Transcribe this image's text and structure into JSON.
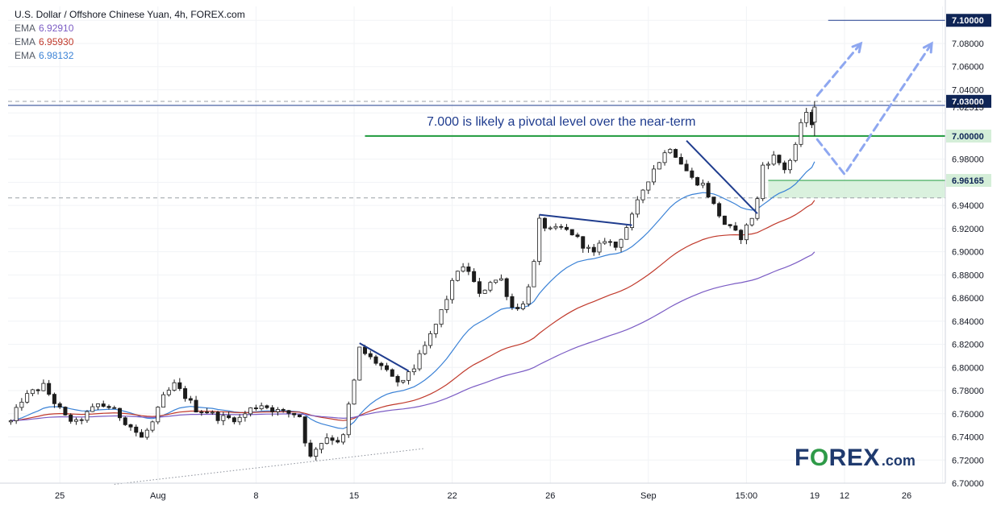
{
  "header": {
    "title": "U.S. Dollar / Offshore Chinese Yuan, 4h, FOREX.com",
    "indicators": [
      {
        "label": "EMA",
        "value": "6.92910",
        "color": "#7b5cc4"
      },
      {
        "label": "EMA",
        "value": "6.95930",
        "color": "#c0392b"
      },
      {
        "label": "EMA",
        "value": "6.98132",
        "color": "#3b82d6"
      }
    ]
  },
  "logo": {
    "brand_pre": "F",
    "brand_o": "O",
    "brand_post": "REX",
    "tld": ".com"
  },
  "colors": {
    "candle_up": "#ffffff",
    "candle_down": "#1c1c1c",
    "wick": "#1c1c1c",
    "ema_fast": "#3b82d6",
    "ema_mid": "#c0392b",
    "ema_slow": "#7b5cc4",
    "pivot_line": "#1e9a3c",
    "zone_fill": "#d4eed8",
    "trendline": "#1f3c8e",
    "projection": "#8ea7f0",
    "badge_dark": "#0f2556",
    "price_text": "#131722"
  },
  "chart_data": {
    "type": "candlestick",
    "title": "U.S. Dollar / Offshore Chinese Yuan, 4h, FOREX.com",
    "ylim": [
      6.7,
      7.112
    ],
    "y_ticks": [
      6.7,
      6.72,
      6.74,
      6.76,
      6.78,
      6.8,
      6.82,
      6.84,
      6.86,
      6.88,
      6.9,
      6.92,
      6.94,
      6.96,
      6.98,
      7.0,
      7.02,
      7.04,
      7.06,
      7.08,
      7.1
    ],
    "y_tick_labels": [
      "6.70000",
      "6.72000",
      "6.74000",
      "6.76000",
      "6.78000",
      "6.80000",
      "6.82000",
      "6.84000",
      "6.86000",
      "6.88000",
      "6.90000",
      "6.92000",
      "6.94000",
      "6.96000",
      "6.98000",
      "7.00000",
      "7.02000",
      "7.04000",
      "7.06000",
      "7.08000",
      "7.10000"
    ],
    "x_range": [
      0,
      172
    ],
    "x_ticks": [
      {
        "i": 9,
        "label": "25"
      },
      {
        "i": 27,
        "label": "Aug"
      },
      {
        "i": 45,
        "label": "8"
      },
      {
        "i": 63,
        "label": "15"
      },
      {
        "i": 81,
        "label": "22"
      },
      {
        "i": 99,
        "label": "26"
      },
      {
        "i": 117,
        "label": "Sep"
      },
      {
        "i": 135,
        "label": "15:00"
      },
      {
        "i": 153,
        "label": "12"
      },
      {
        "i": 171,
        "label": "19"
      },
      {
        "i": 189,
        "label": "26"
      }
    ],
    "annotation": "7.000 is likely a pivotal level over the near-term",
    "price_labels": [
      {
        "value": 7.1,
        "text": "7.10000",
        "style": "dark"
      },
      {
        "value": 7.03,
        "text": "7.03000",
        "style": "dark"
      },
      {
        "value": 7.02515,
        "text": "7.02515",
        "style": "plain"
      },
      {
        "value": 7.0,
        "text": "7.00000",
        "style": "green"
      },
      {
        "value": 6.96165,
        "text": "6.96165",
        "style": "green"
      }
    ],
    "levels": [
      {
        "name": "pivot",
        "value": 7.0,
        "from_i": 65,
        "to_i": 172
      },
      {
        "name": "resistance",
        "value": 7.0265,
        "from_i": 0,
        "to_i": 172
      },
      {
        "name": "target",
        "value": 7.1,
        "from_i": 150,
        "to_i": 172
      }
    ],
    "zone": {
      "from_i": 139,
      "to_i": 172,
      "low": 6.9465,
      "high": 6.96165
    },
    "dashed_levels": [
      6.9465,
      7.03
    ],
    "trendlines": [
      {
        "i0": 64,
        "v0": 6.821,
        "i1": 73,
        "v1": 6.797
      },
      {
        "i0": 97,
        "v0": 6.932,
        "i1": 114,
        "v1": 6.923
      },
      {
        "i0": 124,
        "v0": 6.996,
        "i1": 137,
        "v1": 6.933
      }
    ],
    "dotted_trendline": {
      "i0": 19,
      "v0": 6.699,
      "i1": 76,
      "v1": 6.73
    },
    "projections": [
      [
        {
          "i": 148,
          "v": 7.035
        },
        {
          "i": 156,
          "v": 7.08
        }
      ],
      [
        {
          "i": 148,
          "v": 6.997
        },
        {
          "i": 153,
          "v": 6.967
        },
        {
          "i": 169,
          "v": 7.08
        }
      ]
    ],
    "anchors": [
      [
        0,
        6.753
      ],
      [
        2,
        6.772
      ],
      [
        4,
        6.779
      ],
      [
        6,
        6.784
      ],
      [
        8,
        6.77
      ],
      [
        10,
        6.757
      ],
      [
        12,
        6.752
      ],
      [
        14,
        6.76
      ],
      [
        16,
        6.768
      ],
      [
        18,
        6.766
      ],
      [
        20,
        6.758
      ],
      [
        22,
        6.749
      ],
      [
        24,
        6.739
      ],
      [
        26,
        6.752
      ],
      [
        28,
        6.774
      ],
      [
        30,
        6.785
      ],
      [
        32,
        6.775
      ],
      [
        34,
        6.764
      ],
      [
        36,
        6.762
      ],
      [
        38,
        6.757
      ],
      [
        40,
        6.756
      ],
      [
        42,
        6.756
      ],
      [
        44,
        6.764
      ],
      [
        46,
        6.768
      ],
      [
        48,
        6.764
      ],
      [
        50,
        6.761
      ],
      [
        52,
        6.76
      ],
      [
        53,
        6.758
      ],
      [
        54,
        6.737
      ],
      [
        55,
        6.722
      ],
      [
        56,
        6.731
      ],
      [
        58,
        6.74
      ],
      [
        60,
        6.737
      ],
      [
        61,
        6.74
      ],
      [
        62,
        6.767
      ],
      [
        63,
        6.788
      ],
      [
        64,
        6.816
      ],
      [
        66,
        6.808
      ],
      [
        68,
        6.801
      ],
      [
        70,
        6.79
      ],
      [
        72,
        6.786
      ],
      [
        73,
        6.797
      ],
      [
        74,
        6.8
      ],
      [
        76,
        6.818
      ],
      [
        78,
        6.837
      ],
      [
        80,
        6.86
      ],
      [
        82,
        6.885
      ],
      [
        84,
        6.884
      ],
      [
        86,
        6.862
      ],
      [
        88,
        6.875
      ],
      [
        90,
        6.876
      ],
      [
        92,
        6.852
      ],
      [
        94,
        6.854
      ],
      [
        96,
        6.89
      ],
      [
        97,
        6.926
      ],
      [
        99,
        6.918
      ],
      [
        101,
        6.92
      ],
      [
        103,
        6.916
      ],
      [
        105,
        6.906
      ],
      [
        107,
        6.898
      ],
      [
        109,
        6.911
      ],
      [
        111,
        6.904
      ],
      [
        112,
        6.913
      ],
      [
        114,
        6.93
      ],
      [
        116,
        6.954
      ],
      [
        118,
        6.972
      ],
      [
        120,
        6.985
      ],
      [
        121,
        6.991
      ],
      [
        123,
        6.977
      ],
      [
        125,
        6.963
      ],
      [
        127,
        6.958
      ],
      [
        129,
        6.94
      ],
      [
        131,
        6.924
      ],
      [
        133,
        6.916
      ],
      [
        134,
        6.913
      ],
      [
        136,
        6.93
      ],
      [
        137,
        6.945
      ],
      [
        138,
        6.975
      ],
      [
        140,
        6.982
      ],
      [
        141,
        6.977
      ],
      [
        142,
        6.972
      ],
      [
        143,
        6.979
      ],
      [
        144,
        6.99
      ],
      [
        145,
        7.012
      ],
      [
        146,
        7.018
      ],
      [
        147,
        7.012
      ]
    ],
    "last_candle": {
      "i": 147.5,
      "open": 7.012,
      "high": 7.03,
      "low": 7.0,
      "close": 7.025
    },
    "ema_periods": [
      20,
      50,
      100
    ]
  }
}
